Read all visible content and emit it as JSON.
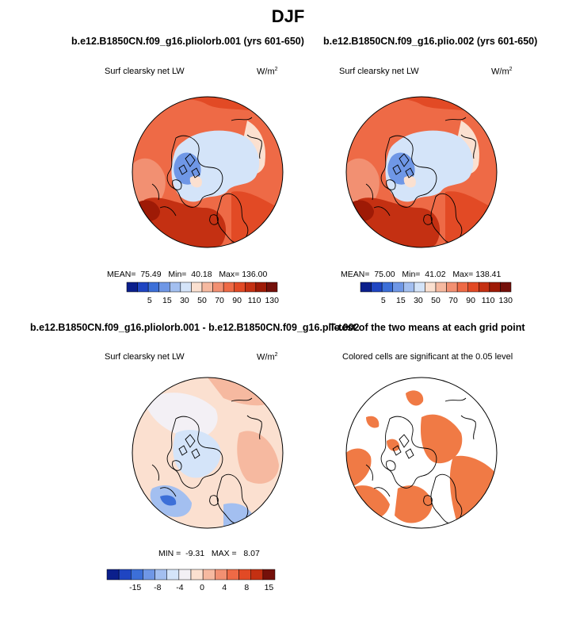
{
  "figure": {
    "main_title": "DJF",
    "panels": [
      {
        "id": "top-left",
        "title": "b.e12.B1850CN.f09_g16.pliolorb.001 (yrs 601-650)",
        "subtitle": "Surf clearsky net LW",
        "units": "W/m",
        "units_exp": "2",
        "stats": {
          "mean_label": "MEAN=",
          "mean": "75.49",
          "min_label": "Min=",
          "min": "40.18",
          "max_label": "Max=",
          "max": "136.00"
        },
        "colorbar_ticks": [
          "5",
          "15",
          "30",
          "50",
          "70",
          "90",
          "110",
          "130"
        ]
      },
      {
        "id": "top-right",
        "title": "b.e12.B1850CN.f09_g16.plio.002 (yrs 601-650)",
        "subtitle": "Surf clearsky net LW",
        "units": "W/m",
        "units_exp": "2",
        "stats": {
          "mean_label": "MEAN=",
          "mean": "75.00",
          "min_label": "Min=",
          "min": "41.02",
          "max_label": "Max=",
          "max": "138.41"
        },
        "colorbar_ticks": [
          "5",
          "15",
          "30",
          "50",
          "70",
          "90",
          "110",
          "130"
        ]
      },
      {
        "id": "bottom-left",
        "title": "b.e12.B1850CN.f09_g16.pliolorb.001 - b.e12.B1850CN.f09_g16.plio.002",
        "subtitle": "Surf clearsky net LW",
        "units": "W/m",
        "units_exp": "2",
        "stats": {
          "min_label": "MIN =",
          "min": "-9.31",
          "max_label": "MAX =",
          "max": "8.07"
        },
        "colorbar_ticks": [
          "-15",
          "-8",
          "-4",
          "0",
          "4",
          "8",
          "15"
        ]
      },
      {
        "id": "bottom-right",
        "title": "T-test of the two means at each grid point",
        "subtitle": "Colored cells are significant at the 0.05 level"
      }
    ],
    "colors": {
      "abs_scale": [
        "#0b1f8c",
        "#1f45c2",
        "#3c6fd8",
        "#6f97e6",
        "#a3bff0",
        "#d4e4f9",
        "#fbe0d0",
        "#f6b9a0",
        "#f29072",
        "#ee6a46",
        "#e24a25",
        "#c43012",
        "#9e1a06",
        "#74100a"
      ],
      "diff_scale": [
        "#0b1f8c",
        "#1f45c2",
        "#3c6fd8",
        "#6f97e6",
        "#a3bff0",
        "#d4e4f9",
        "#f3f0f5",
        "#fbe0d0",
        "#f6b9a0",
        "#f29072",
        "#ee6a46",
        "#e24a25",
        "#c43012",
        "#74100a"
      ],
      "significance": "#f07a45"
    }
  },
  "chart_data": [
    {
      "type": "heatmap",
      "title": "b.e12.B1850CN.f09_g16.pliolorb.001 (yrs 601-650)",
      "variable": "Surf clearsky net LW",
      "units": "W/m2",
      "projection": "north polar stereographic",
      "stats": {
        "mean": 75.49,
        "min": 40.18,
        "max": 136.0
      },
      "levels": [
        5,
        15,
        30,
        50,
        70,
        90,
        110,
        130
      ]
    },
    {
      "type": "heatmap",
      "title": "b.e12.B1850CN.f09_g16.plio.002 (yrs 601-650)",
      "variable": "Surf clearsky net LW",
      "units": "W/m2",
      "projection": "north polar stereographic",
      "stats": {
        "mean": 75.0,
        "min": 41.02,
        "max": 138.41
      },
      "levels": [
        5,
        15,
        30,
        50,
        70,
        90,
        110,
        130
      ]
    },
    {
      "type": "heatmap",
      "title": "b.e12.B1850CN.f09_g16.pliolorb.001 - b.e12.B1850CN.f09_g16.plio.002",
      "variable": "Surf clearsky net LW",
      "units": "W/m2",
      "projection": "north polar stereographic",
      "stats": {
        "min": -9.31,
        "max": 8.07
      },
      "levels": [
        -15,
        -8,
        -4,
        0,
        4,
        8,
        15
      ]
    },
    {
      "type": "heatmap",
      "title": "T-test of the two means at each grid point",
      "note": "Colored cells are significant at the 0.05 level",
      "projection": "north polar stereographic"
    }
  ]
}
